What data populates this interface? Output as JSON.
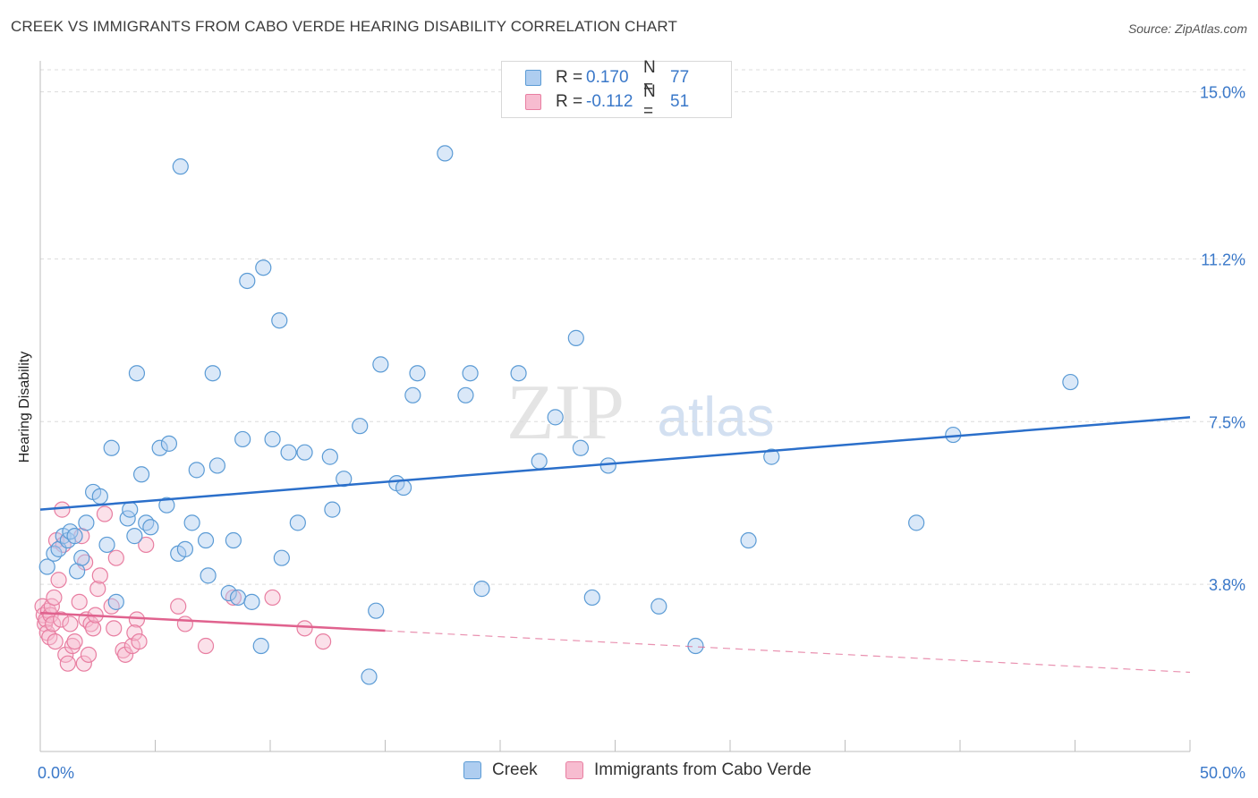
{
  "title": "CREEK VS IMMIGRANTS FROM CABO VERDE HEARING DISABILITY CORRELATION CHART",
  "source": "Source: ZipAtlas.com",
  "watermark": {
    "zip": "ZIP",
    "atlas": "atlas"
  },
  "legend_top": [
    {
      "r_label": "R =",
      "r_value": "0.170",
      "n_label": "N =",
      "n_value": "77"
    },
    {
      "r_label": "R =",
      "r_value": "-0.112",
      "n_label": "N =",
      "n_value": "51"
    }
  ],
  "legend_bottom": [
    "Creek",
    "Immigrants from Cabo Verde"
  ],
  "chart_data": {
    "type": "scatter",
    "ylabel": "Hearing Disability",
    "xlim": [
      0,
      50
    ],
    "ylim": [
      0,
      15.5
    ],
    "x_tick_labels": [
      "0.0%",
      "50.0%"
    ],
    "y_ticks": [
      3.8,
      7.5,
      11.2,
      15.0
    ],
    "y_tick_labels": [
      "3.8%",
      "7.5%",
      "11.2%",
      "15.0%"
    ],
    "grid": "horizontal dashed",
    "colors": {
      "creek": "#5b9bd5",
      "creek_fill": "#aecdf0",
      "cabo": "#e87ea1",
      "cabo_fill": "#f7bcd0",
      "line_creek": "#2b6fca",
      "line_cabo": "#e0628e",
      "ytick_text": "#3a78c9"
    },
    "series": [
      {
        "name": "Creek",
        "trend": {
          "x": [
            0,
            50
          ],
          "y": [
            5.5,
            7.6
          ],
          "dashed_from": null
        },
        "points": [
          [
            0.3,
            4.2
          ],
          [
            0.6,
            4.5
          ],
          [
            0.8,
            4.6
          ],
          [
            1.0,
            4.9
          ],
          [
            1.2,
            4.8
          ],
          [
            1.3,
            5.0
          ],
          [
            1.6,
            4.1
          ],
          [
            1.8,
            4.4
          ],
          [
            2.0,
            5.2
          ],
          [
            2.3,
            5.9
          ],
          [
            2.6,
            5.8
          ],
          [
            2.9,
            4.7
          ],
          [
            3.1,
            6.9
          ],
          [
            3.3,
            3.4
          ],
          [
            3.8,
            5.3
          ],
          [
            3.9,
            5.5
          ],
          [
            4.1,
            4.9
          ],
          [
            4.2,
            8.6
          ],
          [
            4.4,
            6.3
          ],
          [
            4.6,
            5.2
          ],
          [
            4.8,
            5.1
          ],
          [
            5.2,
            6.9
          ],
          [
            5.5,
            5.6
          ],
          [
            5.6,
            7.0
          ],
          [
            6.0,
            4.5
          ],
          [
            6.3,
            4.6
          ],
          [
            6.1,
            13.3
          ],
          [
            6.6,
            5.2
          ],
          [
            6.8,
            6.4
          ],
          [
            7.2,
            4.8
          ],
          [
            7.3,
            4.0
          ],
          [
            7.5,
            8.6
          ],
          [
            7.7,
            6.5
          ],
          [
            8.2,
            3.6
          ],
          [
            8.4,
            4.8
          ],
          [
            8.6,
            3.5
          ],
          [
            8.8,
            7.1
          ],
          [
            9.0,
            10.7
          ],
          [
            9.2,
            3.4
          ],
          [
            9.6,
            2.4
          ],
          [
            9.7,
            11.0
          ],
          [
            10.1,
            7.1
          ],
          [
            10.4,
            9.8
          ],
          [
            10.5,
            4.4
          ],
          [
            10.8,
            6.8
          ],
          [
            11.2,
            5.2
          ],
          [
            11.5,
            6.8
          ],
          [
            12.6,
            6.7
          ],
          [
            12.7,
            5.5
          ],
          [
            13.2,
            6.2
          ],
          [
            13.9,
            7.4
          ],
          [
            14.3,
            1.7
          ],
          [
            14.6,
            3.2
          ],
          [
            14.8,
            8.8
          ],
          [
            15.5,
            6.1
          ],
          [
            15.8,
            6.0
          ],
          [
            16.2,
            8.1
          ],
          [
            16.4,
            8.6
          ],
          [
            17.6,
            13.6
          ],
          [
            18.5,
            8.1
          ],
          [
            18.7,
            8.6
          ],
          [
            19.2,
            3.7
          ],
          [
            20.8,
            8.6
          ],
          [
            21.7,
            6.6
          ],
          [
            22.4,
            7.6
          ],
          [
            23.3,
            9.4
          ],
          [
            23.5,
            6.9
          ],
          [
            24.0,
            3.5
          ],
          [
            24.7,
            6.5
          ],
          [
            26.9,
            3.3
          ],
          [
            28.5,
            2.4
          ],
          [
            30.8,
            4.8
          ],
          [
            31.8,
            6.7
          ],
          [
            38.1,
            5.2
          ],
          [
            39.7,
            7.2
          ],
          [
            44.8,
            8.4
          ],
          [
            1.5,
            4.9
          ]
        ]
      },
      {
        "name": "Immigrants from Cabo Verde",
        "trend": {
          "x": [
            0,
            50
          ],
          "y": [
            3.15,
            1.8
          ],
          "dashed_from": 15
        },
        "points": [
          [
            0.1,
            3.3
          ],
          [
            0.15,
            3.1
          ],
          [
            0.2,
            2.9
          ],
          [
            0.25,
            3.0
          ],
          [
            0.3,
            2.7
          ],
          [
            0.35,
            3.2
          ],
          [
            0.4,
            2.6
          ],
          [
            0.45,
            3.1
          ],
          [
            0.5,
            3.3
          ],
          [
            0.55,
            2.9
          ],
          [
            0.6,
            3.5
          ],
          [
            0.65,
            2.5
          ],
          [
            0.7,
            4.8
          ],
          [
            0.8,
            3.9
          ],
          [
            0.9,
            3.0
          ],
          [
            1.0,
            4.7
          ],
          [
            0.95,
            5.5
          ],
          [
            1.1,
            2.2
          ],
          [
            1.2,
            2.0
          ],
          [
            1.3,
            2.9
          ],
          [
            1.4,
            2.4
          ],
          [
            1.5,
            2.5
          ],
          [
            1.7,
            3.4
          ],
          [
            1.8,
            4.9
          ],
          [
            1.9,
            2.0
          ],
          [
            2.0,
            3.0
          ],
          [
            2.1,
            2.2
          ],
          [
            2.2,
            2.9
          ],
          [
            2.3,
            2.8
          ],
          [
            2.4,
            3.1
          ],
          [
            2.5,
            3.7
          ],
          [
            2.6,
            4.0
          ],
          [
            1.95,
            4.3
          ],
          [
            3.2,
            2.8
          ],
          [
            3.1,
            3.3
          ],
          [
            3.3,
            4.4
          ],
          [
            2.8,
            5.4
          ],
          [
            3.6,
            2.3
          ],
          [
            3.7,
            2.2
          ],
          [
            4.0,
            2.4
          ],
          [
            4.2,
            3.0
          ],
          [
            4.1,
            2.7
          ],
          [
            4.3,
            2.5
          ],
          [
            4.6,
            4.7
          ],
          [
            6.0,
            3.3
          ],
          [
            6.3,
            2.9
          ],
          [
            7.2,
            2.4
          ],
          [
            8.4,
            3.5
          ],
          [
            10.1,
            3.5
          ],
          [
            11.5,
            2.8
          ],
          [
            12.3,
            2.5
          ]
        ]
      }
    ]
  }
}
